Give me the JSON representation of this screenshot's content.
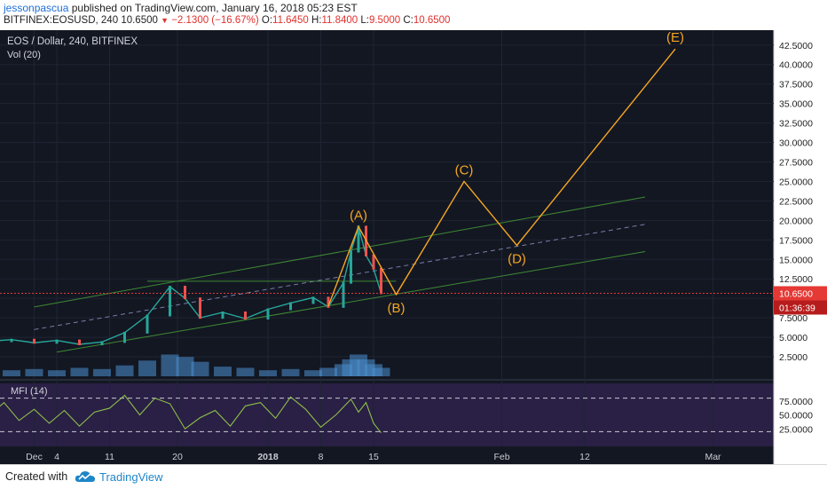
{
  "header": {
    "author": "jessonpascua",
    "published": "published on TradingView.com, January 16, 2018 05:23 EST",
    "symbol_line": "BITFINEX:EOSUSD, 240",
    "last": "10.6500",
    "change": "−2.1300 (−16.67%)",
    "o_label": "O:",
    "o": "11.6450",
    "h_label": "H:",
    "h": "11.8400",
    "l_label": "L:",
    "l": "9.5000",
    "c_label": "C:",
    "c": "10.6500"
  },
  "footer": {
    "created_with": "Created with",
    "brand": "TradingView"
  },
  "colors": {
    "background": "#131722",
    "mfi_background": "#2a1f45",
    "up": "#26a69a",
    "down": "#ef5350",
    "wave": "#f5a623",
    "channel": "#3e8a34",
    "price_tag": "#e53935",
    "volume": "#4a8fd0"
  },
  "chart_data": {
    "type": "line",
    "title": "EOS / Dollar, 240, BITFINEX",
    "volume_label": "Vol (20)",
    "mfi_label": "MFI (14)",
    "price_axis": {
      "ylim": [
        0,
        43.5
      ],
      "ticks": [
        "42.5000",
        "40.0000",
        "37.5000",
        "35.0000",
        "32.5000",
        "30.0000",
        "27.5000",
        "25.0000",
        "22.5000",
        "20.0000",
        "17.5000",
        "15.0000",
        "12.5000",
        "10.0000",
        "7.5000",
        "5.0000",
        "2.5000"
      ],
      "last_price_tag": "10.6500",
      "countdown_tag": "01:36:39"
    },
    "mfi_axis": {
      "ticks": [
        "75.0000",
        "50.0000",
        "25.0000"
      ]
    },
    "x_ticks": [
      "Dec",
      "4",
      "11",
      "20",
      "2018",
      "8",
      "15",
      "Feb",
      "12",
      "Mar"
    ],
    "price_series": [
      {
        "x": "Nov 25",
        "y": 4.5
      },
      {
        "x": "Nov 28",
        "y": 4.7
      },
      {
        "x": "Dec 1",
        "y": 4.3
      },
      {
        "x": "Dec 4",
        "y": 4.6
      },
      {
        "x": "Dec 7",
        "y": 4.1
      },
      {
        "x": "Dec 10",
        "y": 4.4
      },
      {
        "x": "Dec 13",
        "y": 5.6
      },
      {
        "x": "Dec 16",
        "y": 7.8
      },
      {
        "x": "Dec 19",
        "y": 11.5
      },
      {
        "x": "Dec 21",
        "y": 10.0
      },
      {
        "x": "Dec 23",
        "y": 7.5
      },
      {
        "x": "Dec 26",
        "y": 8.2
      },
      {
        "x": "Dec 29",
        "y": 7.4
      },
      {
        "x": "Jan 1",
        "y": 8.6
      },
      {
        "x": "Jan 4",
        "y": 9.4
      },
      {
        "x": "Jan 7",
        "y": 10.1
      },
      {
        "x": "Jan 9",
        "y": 8.9
      },
      {
        "x": "Jan 11",
        "y": 12.0
      },
      {
        "x": "Jan 12",
        "y": 16.0
      },
      {
        "x": "Jan 13",
        "y": 19.2
      },
      {
        "x": "Jan 14",
        "y": 15.5
      },
      {
        "x": "Jan 15",
        "y": 13.8
      },
      {
        "x": "Jan 16",
        "y": 10.65
      }
    ],
    "waves": [
      {
        "label": "(A)",
        "x": "Jan 13",
        "y": 19.2,
        "pos": "above"
      },
      {
        "label": "(B)",
        "x": "Jan 18",
        "y": 10.5,
        "pos": "below"
      },
      {
        "label": "(C)",
        "x": "Jan 27",
        "y": 25.0,
        "pos": "above"
      },
      {
        "label": "(D)",
        "x": "Feb 3",
        "y": 16.8,
        "pos": "below"
      },
      {
        "label": "(E)",
        "x": "Feb 24",
        "y": 42.0,
        "pos": "above"
      }
    ],
    "wave_start": {
      "x": "Jan 9",
      "y": 9.0
    },
    "volume_scale": 22,
    "volume": [
      {
        "x": "Nov 25",
        "v": 4
      },
      {
        "x": "Nov 28",
        "v": 5
      },
      {
        "x": "Dec 1",
        "v": 6
      },
      {
        "x": "Dec 4",
        "v": 5
      },
      {
        "x": "Dec 7",
        "v": 7
      },
      {
        "x": "Dec 10",
        "v": 6
      },
      {
        "x": "Dec 13",
        "v": 9
      },
      {
        "x": "Dec 16",
        "v": 13
      },
      {
        "x": "Dec 19",
        "v": 18
      },
      {
        "x": "Dec 21",
        "v": 16
      },
      {
        "x": "Dec 23",
        "v": 12
      },
      {
        "x": "Dec 26",
        "v": 8
      },
      {
        "x": "Dec 29",
        "v": 7
      },
      {
        "x": "Jan 1",
        "v": 5
      },
      {
        "x": "Jan 4",
        "v": 6
      },
      {
        "x": "Jan 7",
        "v": 5
      },
      {
        "x": "Jan 9",
        "v": 7
      },
      {
        "x": "Jan 11",
        "v": 10
      },
      {
        "x": "Jan 12",
        "v": 14
      },
      {
        "x": "Jan 13",
        "v": 18
      },
      {
        "x": "Jan 14",
        "v": 14
      },
      {
        "x": "Jan 15",
        "v": 10
      },
      {
        "x": "Jan 16",
        "v": 7
      }
    ],
    "mfi": [
      {
        "x": "Nov 25",
        "y": 48
      },
      {
        "x": "Nov 27",
        "y": 72
      },
      {
        "x": "Nov 29",
        "y": 40
      },
      {
        "x": "Dec 1",
        "y": 60
      },
      {
        "x": "Dec 3",
        "y": 35
      },
      {
        "x": "Dec 5",
        "y": 58
      },
      {
        "x": "Dec 7",
        "y": 30
      },
      {
        "x": "Dec 9",
        "y": 55
      },
      {
        "x": "Dec 11",
        "y": 62
      },
      {
        "x": "Dec 13",
        "y": 85
      },
      {
        "x": "Dec 15",
        "y": 50
      },
      {
        "x": "Dec 17",
        "y": 80
      },
      {
        "x": "Dec 19",
        "y": 70
      },
      {
        "x": "Dec 21",
        "y": 25
      },
      {
        "x": "Dec 23",
        "y": 45
      },
      {
        "x": "Dec 25",
        "y": 58
      },
      {
        "x": "Dec 27",
        "y": 30
      },
      {
        "x": "Dec 29",
        "y": 66
      },
      {
        "x": "Dec 31",
        "y": 72
      },
      {
        "x": "Jan 2",
        "y": 44
      },
      {
        "x": "Jan 4",
        "y": 82
      },
      {
        "x": "Jan 6",
        "y": 60
      },
      {
        "x": "Jan 8",
        "y": 28
      },
      {
        "x": "Jan 10",
        "y": 50
      },
      {
        "x": "Jan 12",
        "y": 78
      },
      {
        "x": "Jan 13",
        "y": 55
      },
      {
        "x": "Jan 14",
        "y": 72
      },
      {
        "x": "Jan 15",
        "y": 35
      },
      {
        "x": "Jan 16",
        "y": 18
      }
    ],
    "mfi_levels": [
      80,
      20
    ],
    "grid": true
  }
}
